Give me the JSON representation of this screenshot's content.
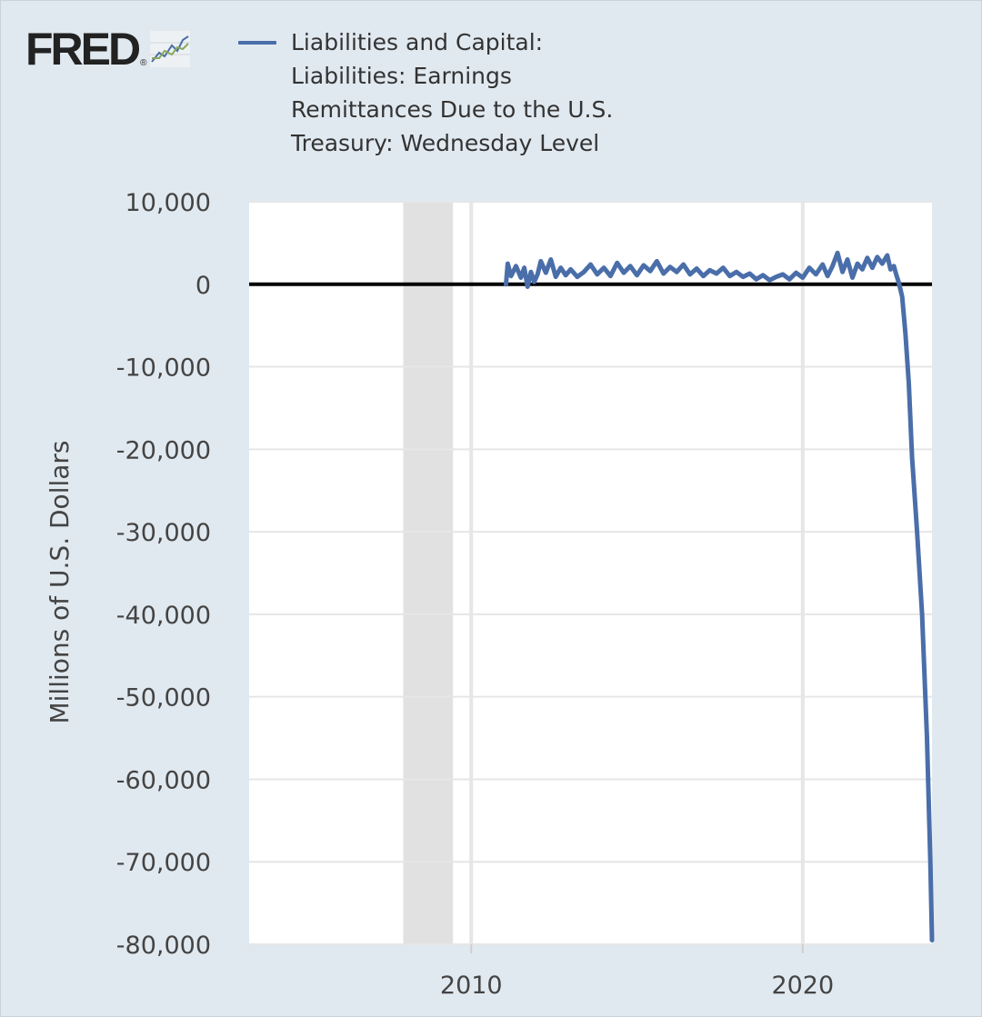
{
  "logo": {
    "text": "FRED",
    "reg": "®"
  },
  "legend": {
    "series_name": "Liabilities and Capital: Liabilities: Earnings Remittances Due to the U.S. Treasury: Wednesday Level",
    "color": "#4a6ea9"
  },
  "chart_data": {
    "type": "line",
    "title": "",
    "xlabel": "",
    "ylabel": "Millions of U.S. Dollars",
    "xlim": [
      2003.3,
      2023.9
    ],
    "ylim": [
      -80000,
      10000
    ],
    "y_ticks": [
      10000,
      0,
      -10000,
      -20000,
      -30000,
      -40000,
      -50000,
      -60000,
      -70000,
      -80000
    ],
    "y_tick_labels": [
      "10,000",
      "0",
      "-10,000",
      "-20,000",
      "-30,000",
      "-40,000",
      "-50,000",
      "-60,000",
      "-70,000",
      "-80,000"
    ],
    "x_ticks": [
      2010,
      2020
    ],
    "x_tick_labels": [
      "2010",
      "2020"
    ],
    "recession_bands": [
      [
        2007.95,
        2009.45
      ]
    ],
    "zero_line": true,
    "series": [
      {
        "name": "Liabilities and Capital: Liabilities: Earnings Remittances Due to the U.S. Treasury: Wednesday Level",
        "color": "#4a6ea9",
        "x": [
          2011.05,
          2011.1,
          2011.2,
          2011.35,
          2011.5,
          2011.6,
          2011.7,
          2011.8,
          2011.9,
          2012.0,
          2012.1,
          2012.25,
          2012.4,
          2012.55,
          2012.7,
          2012.85,
          2013.0,
          2013.2,
          2013.4,
          2013.6,
          2013.8,
          2014.0,
          2014.2,
          2014.4,
          2014.6,
          2014.8,
          2015.0,
          2015.2,
          2015.4,
          2015.6,
          2015.8,
          2016.0,
          2016.2,
          2016.4,
          2016.6,
          2016.8,
          2017.0,
          2017.2,
          2017.4,
          2017.6,
          2017.8,
          2018.0,
          2018.2,
          2018.4,
          2018.6,
          2018.8,
          2019.0,
          2019.2,
          2019.4,
          2019.6,
          2019.8,
          2020.0,
          2020.2,
          2020.4,
          2020.6,
          2020.75,
          2020.9,
          2021.05,
          2021.2,
          2021.35,
          2021.5,
          2021.65,
          2021.8,
          2021.95,
          2022.1,
          2022.25,
          2022.4,
          2022.55,
          2022.65,
          2022.75,
          2022.82,
          2022.9,
          2023.0,
          2023.1,
          2023.2,
          2023.3,
          2023.45,
          2023.6,
          2023.75,
          2023.85,
          2023.9
        ],
        "y": [
          0,
          2500,
          1000,
          2200,
          800,
          2000,
          -300,
          1500,
          300,
          1200,
          2800,
          1400,
          3000,
          900,
          2000,
          1100,
          1800,
          900,
          1500,
          2400,
          1200,
          2000,
          1000,
          2600,
          1400,
          2200,
          1100,
          2300,
          1600,
          2800,
          1300,
          2100,
          1500,
          2400,
          1200,
          1900,
          1000,
          1700,
          1300,
          2000,
          1000,
          1500,
          900,
          1300,
          600,
          1100,
          500,
          900,
          1200,
          600,
          1400,
          800,
          2000,
          1200,
          2400,
          1000,
          2200,
          3800,
          1500,
          3000,
          800,
          2500,
          1800,
          3200,
          2000,
          3300,
          2500,
          3500,
          1800,
          2200,
          1200,
          200,
          -1500,
          -6000,
          -12000,
          -21000,
          -30000,
          -40000,
          -55000,
          -70000,
          -79500
        ]
      }
    ]
  }
}
